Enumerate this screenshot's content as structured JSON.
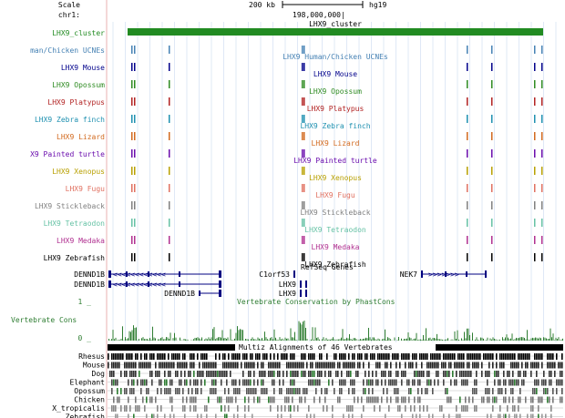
{
  "header": {
    "scale_label": "Scale",
    "scale_value": "200 kb",
    "assembly": "hg19",
    "chrom": "chr1:",
    "position": "198,000,000|"
  },
  "tracks": [
    {
      "label": "LHX9_cluster",
      "title": "LHX9_cluster",
      "color": "#228b22"
    },
    {
      "label": "man/Chicken UCNEs",
      "title": "LHX9 Human/Chicken UCNEs",
      "color": "#4682b4"
    },
    {
      "label": "LHX9 Mouse",
      "title": "LHX9 Mouse",
      "color": "#00008b"
    },
    {
      "label": "LHX9 Opossum",
      "title": "LHX9 Opossum",
      "color": "#2e8b22"
    },
    {
      "label": "LHX9 Platypus",
      "title": "LHX9 Platypus",
      "color": "#b22222"
    },
    {
      "label": "LHX9 Zebra finch",
      "title": "LHX9 Zebra finch",
      "color": "#1e90b0"
    },
    {
      "label": "LHX9 Lizard",
      "title": "LHX9 Lizard",
      "color": "#d2691e"
    },
    {
      "label": "X9 Painted turtle",
      "title": "LHX9 Painted turtle",
      "color": "#6a0dad"
    },
    {
      "label": "LHX9 Xenopus",
      "title": "LHX9 Xenopus",
      "color": "#b8a000"
    },
    {
      "label": "LHX9 Fugu",
      "title": "LHX9 Fugu",
      "color": "#e07060"
    },
    {
      "label": "LHX9 Stickleback",
      "title": "LHX9 Stickleback",
      "color": "#808080"
    },
    {
      "label": "LHX9 Tetraodon",
      "title": "LHX9 Tetraodon",
      "color": "#66c2a5"
    },
    {
      "label": "LHX9 Medaka",
      "title": "LHX9 Medaka",
      "color": "#b03090"
    },
    {
      "label": "LHX9 Zebrafish",
      "title": "LHX9 Zebrafish",
      "color": "#000000"
    }
  ],
  "refseq": {
    "title": "RefSeq Genes",
    "genes": [
      "DENND1B",
      "DENND1B",
      "DENND1B",
      "C1orf53",
      "LHX9",
      "LHX9",
      "NEK7"
    ]
  },
  "conservation": {
    "title": "Vertebrate Conservation by PhastCons",
    "label": "Vertebrate Cons",
    "scale_max": "1 _",
    "scale_min": "0 _",
    "color": "#2e7d32"
  },
  "multiz": {
    "title": "Multiz Alignments of 46 Vertebrates",
    "species": [
      "Rhesus",
      "Mouse",
      "Dog",
      "Elephant",
      "Opossum",
      "Chicken",
      "X_tropicalis",
      "Zebrafish"
    ]
  }
}
